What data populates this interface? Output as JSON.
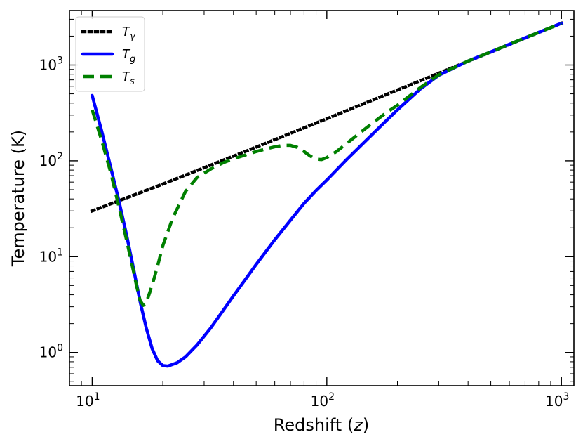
{
  "chart_data": {
    "type": "line",
    "xlabel": "Redshift (z)",
    "ylabel": "Temperature (K)",
    "xscale": "log",
    "yscale": "log",
    "xlim": [
      8.0,
      1130
    ],
    "ylim": [
      0.45,
      3700
    ],
    "x_ticks": [
      {
        "value": 10,
        "base": "10",
        "exp": "1"
      },
      {
        "value": 100,
        "base": "10",
        "exp": "2"
      },
      {
        "value": 1000,
        "base": "10",
        "exp": "3"
      }
    ],
    "y_ticks": [
      {
        "value": 1,
        "base": "10",
        "exp": "0"
      },
      {
        "value": 10,
        "base": "10",
        "exp": "1"
      },
      {
        "value": 100,
        "base": "10",
        "exp": "2"
      },
      {
        "value": 1000,
        "base": "10",
        "exp": "3"
      }
    ],
    "legend": {
      "placement": "upper-left"
    },
    "grid": false,
    "series": [
      {
        "name": "Tγ",
        "legend_main": "T",
        "legend_sub": "γ",
        "color": "#000000",
        "style": "dotted",
        "points": [
          [
            10,
            30.0
          ],
          [
            20,
            57.2
          ],
          [
            50,
            139
          ],
          [
            100,
            275
          ],
          [
            200,
            548
          ],
          [
            500,
            1365
          ],
          [
            1000,
            2728
          ]
        ]
      },
      {
        "name": "Tg",
        "legend_main": "T",
        "legend_sub": "g",
        "color": "#0000ff",
        "style": "solid",
        "points": [
          [
            10,
            480
          ],
          [
            11,
            200
          ],
          [
            12,
            85
          ],
          [
            13,
            38
          ],
          [
            14,
            17
          ],
          [
            15,
            7.5
          ],
          [
            16,
            3.4
          ],
          [
            17,
            1.8
          ],
          [
            18,
            1.1
          ],
          [
            19,
            0.82
          ],
          [
            20,
            0.73
          ],
          [
            21,
            0.72
          ],
          [
            23,
            0.78
          ],
          [
            25,
            0.9
          ],
          [
            28,
            1.2
          ],
          [
            32,
            1.8
          ],
          [
            36,
            2.7
          ],
          [
            40,
            3.9
          ],
          [
            45,
            5.8
          ],
          [
            50,
            8.3
          ],
          [
            60,
            15
          ],
          [
            70,
            24
          ],
          [
            80,
            36
          ],
          [
            90,
            49
          ],
          [
            100,
            63
          ],
          [
            120,
            100
          ],
          [
            140,
            145
          ],
          [
            160,
            200
          ],
          [
            180,
            265
          ],
          [
            200,
            340
          ],
          [
            250,
            560
          ],
          [
            300,
            780
          ],
          [
            400,
            1100
          ],
          [
            500,
            1370
          ],
          [
            700,
            1920
          ],
          [
            1000,
            2728
          ]
        ]
      },
      {
        "name": "Ts",
        "legend_main": "T",
        "legend_sub": "s",
        "color": "#008000",
        "style": "dashed",
        "points": [
          [
            10,
            340
          ],
          [
            11,
            160
          ],
          [
            12,
            75
          ],
          [
            13,
            33
          ],
          [
            14,
            15
          ],
          [
            15,
            7
          ],
          [
            15.5,
            4.8
          ],
          [
            16,
            3.5
          ],
          [
            16.5,
            3.1
          ],
          [
            17,
            3.3
          ],
          [
            18,
            5.0
          ],
          [
            19,
            8
          ],
          [
            20,
            13
          ],
          [
            22,
            25
          ],
          [
            25,
            48
          ],
          [
            28,
            67
          ],
          [
            32,
            82
          ],
          [
            36,
            95
          ],
          [
            40,
            105
          ],
          [
            45,
            115
          ],
          [
            50,
            125
          ],
          [
            55,
            133
          ],
          [
            60,
            140
          ],
          [
            65,
            145
          ],
          [
            70,
            145
          ],
          [
            75,
            138
          ],
          [
            80,
            125
          ],
          [
            85,
            112
          ],
          [
            90,
            104
          ],
          [
            95,
            103
          ],
          [
            100,
            108
          ],
          [
            110,
            125
          ],
          [
            120,
            148
          ],
          [
            140,
            200
          ],
          [
            160,
            258
          ],
          [
            180,
            320
          ],
          [
            200,
            380
          ],
          [
            250,
            580
          ],
          [
            300,
            790
          ],
          [
            400,
            1100
          ],
          [
            500,
            1370
          ],
          [
            700,
            1920
          ],
          [
            1000,
            2728
          ]
        ]
      }
    ]
  }
}
